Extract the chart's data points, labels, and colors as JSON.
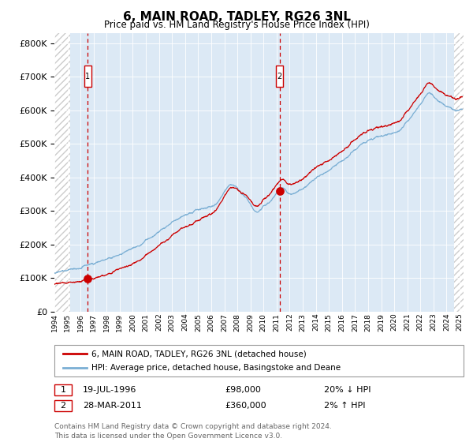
{
  "title": "6, MAIN ROAD, TADLEY, RG26 3NL",
  "subtitle": "Price paid vs. HM Land Registry's House Price Index (HPI)",
  "sale1_date": "19-JUL-1996",
  "sale1_price": 98000,
  "sale1_hpi_pct": "20% ↓ HPI",
  "sale2_date": "28-MAR-2011",
  "sale2_price": 360000,
  "sale2_hpi_pct": "2% ↑ HPI",
  "sale1_year": 1996.54,
  "sale2_year": 2011.23,
  "legend_line1": "6, MAIN ROAD, TADLEY, RG26 3NL (detached house)",
  "legend_line2": "HPI: Average price, detached house, Basingstoke and Deane",
  "footer": "Contains HM Land Registry data © Crown copyright and database right 2024.\nThis data is licensed under the Open Government Licence v3.0.",
  "hpi_color": "#7bafd4",
  "property_color": "#cc0000",
  "bg_color": "#dce9f5",
  "hatch_color": "#cccccc",
  "ylim_max": 830000,
  "xmin": 1994.0,
  "xmax": 2025.3
}
